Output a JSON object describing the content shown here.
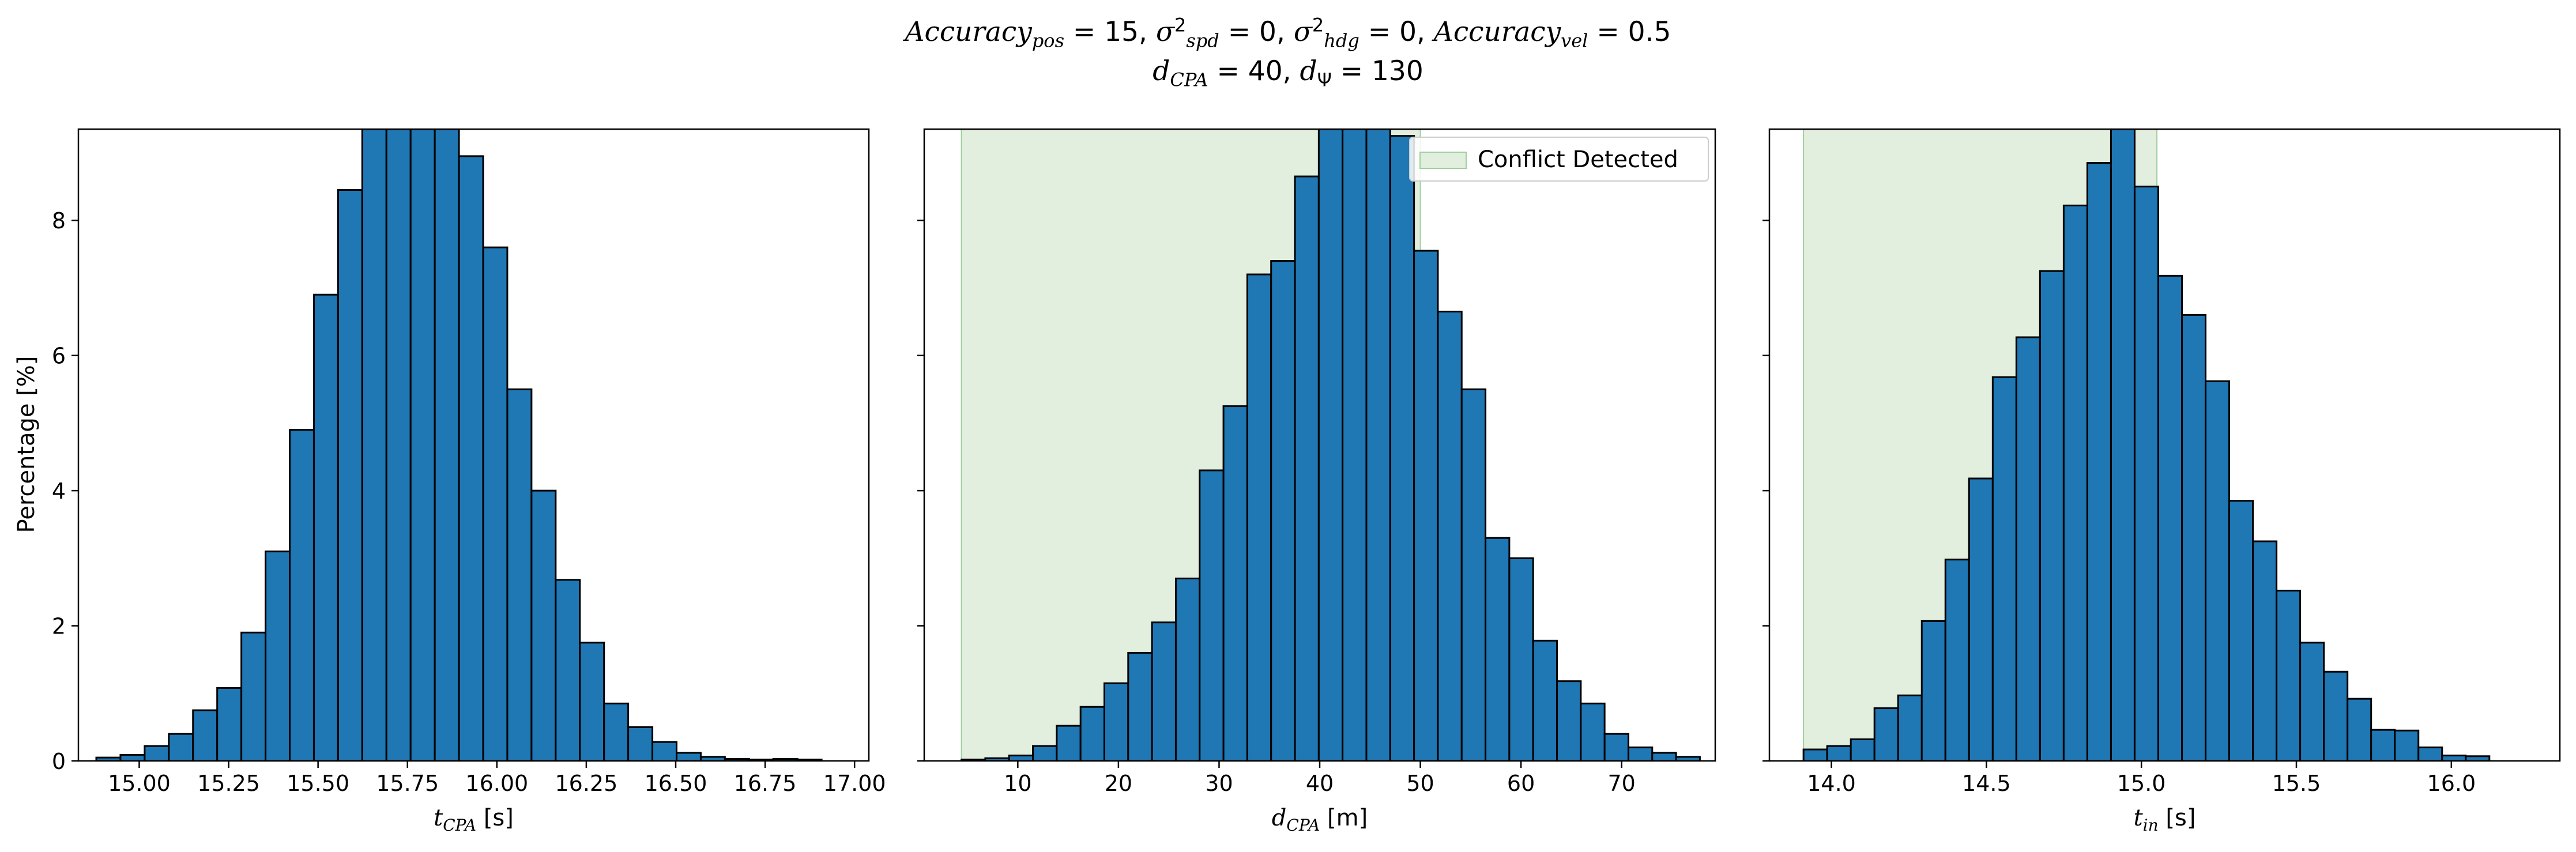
{
  "figure": {
    "title": {
      "line1": {
        "acc_pos": "Accuracy",
        "acc_pos_sub": "pos",
        "acc_pos_val": " = 15, ",
        "sigma_spd": "σ",
        "sigma_spd_sup": "2",
        "sigma_spd_sub": "spd",
        "sigma_spd_val": " = 0, ",
        "sigma_hdg": "σ",
        "sigma_hdg_sup": "2",
        "sigma_hdg_sub": "hdg",
        "sigma_hdg_val": " = 0, ",
        "acc_vel": "Accuracy",
        "acc_vel_sub": "vel",
        "acc_vel_val": " = 0.5"
      },
      "line2": {
        "d_cpa": "d",
        "d_cpa_sub": "CPA",
        "d_cpa_val": " = 40, ",
        "d_psi": "d",
        "d_psi_sub": "Ψ",
        "d_psi_val": " = 130"
      }
    },
    "colors": {
      "bar": "#1f77b4",
      "bar_edge": "#000000",
      "shade": "#d9ead3"
    }
  },
  "chart_data": [
    {
      "type": "bar",
      "xlabel": {
        "var": "t",
        "sub": "CPA",
        "unit": " [s]"
      },
      "ylabel": "Percentage [%]",
      "xlim": [
        14.83,
        17.04
      ],
      "ylim": [
        0,
        9.35
      ],
      "xticks": [
        15.0,
        15.25,
        15.5,
        15.75,
        16.0,
        16.25,
        16.5,
        16.75,
        17.0
      ],
      "xtick_labels": [
        "15.00",
        "15.25",
        "15.50",
        "15.75",
        "16.00",
        "16.25",
        "16.50",
        "16.75",
        "17.00"
      ],
      "yticks": [
        0,
        2,
        4,
        6,
        8
      ],
      "ytick_labels": [
        "0",
        "2",
        "4",
        "6",
        "8"
      ],
      "bin_start": 14.88,
      "bin_width": 0.0676,
      "values": [
        0.05,
        0.09,
        0.22,
        0.4,
        0.75,
        1.08,
        1.9,
        3.1,
        4.9,
        6.9,
        8.45,
        9.35,
        9.35,
        9.35,
        9.35,
        8.95,
        7.6,
        5.5,
        4.0,
        2.68,
        1.75,
        0.85,
        0.5,
        0.28,
        0.12,
        0.06,
        0.03,
        0.02,
        0.03,
        0.02
      ],
      "shaded_region": null
    },
    {
      "type": "bar",
      "xlabel": {
        "var": "d",
        "sub": "CPA",
        "unit": " [m]"
      },
      "ylabel": "",
      "xlim": [
        0.7,
        79.3
      ],
      "ylim": [
        0,
        9.35
      ],
      "xticks": [
        10,
        20,
        30,
        40,
        50,
        60,
        70
      ],
      "xtick_labels": [
        "10",
        "20",
        "30",
        "40",
        "50",
        "60",
        "70"
      ],
      "yticks": [
        0,
        2,
        4,
        6,
        8
      ],
      "ytick_labels": [
        "",
        "",
        "",
        "",
        ""
      ],
      "bin_start": 4.4,
      "bin_width": 2.367,
      "values": [
        0.02,
        0.04,
        0.08,
        0.22,
        0.52,
        0.8,
        1.15,
        1.6,
        2.05,
        2.7,
        4.3,
        5.25,
        7.2,
        7.4,
        8.65,
        9.35,
        9.35,
        9.35,
        9.25,
        7.55,
        6.65,
        5.5,
        3.3,
        3.0,
        1.78,
        1.18,
        0.85,
        0.4,
        0.2,
        0.12,
        0.06
      ],
      "shaded_region": {
        "label": "Conflict Detected",
        "from": 4.4,
        "to": 50.0
      },
      "legend": {
        "position": "top-right",
        "entries": [
          "Conflict Detected"
        ]
      }
    },
    {
      "type": "bar",
      "xlabel": {
        "var": "t",
        "sub": "in",
        "unit": " [s]"
      },
      "ylabel": "",
      "xlim": [
        13.8,
        16.35
      ],
      "ylim": [
        0,
        9.35
      ],
      "xticks": [
        14.0,
        14.5,
        15.0,
        15.5,
        16.0
      ],
      "xtick_labels": [
        "14.0",
        "14.5",
        "15.0",
        "15.5",
        "16.0"
      ],
      "yticks": [
        0,
        2,
        4,
        6,
        8
      ],
      "ytick_labels": [
        "",
        "",
        "",
        "",
        ""
      ],
      "bin_start": 13.91,
      "bin_width": 0.0763,
      "values": [
        0.17,
        0.22,
        0.32,
        0.78,
        0.97,
        2.07,
        2.98,
        4.18,
        5.68,
        6.27,
        7.25,
        8.22,
        8.85,
        9.35,
        8.5,
        7.18,
        6.6,
        5.62,
        3.85,
        3.25,
        2.52,
        1.75,
        1.32,
        0.92,
        0.46,
        0.45,
        0.2,
        0.08,
        0.07
      ],
      "shaded_region": {
        "label": "",
        "from": 13.91,
        "to": 15.05
      }
    }
  ]
}
